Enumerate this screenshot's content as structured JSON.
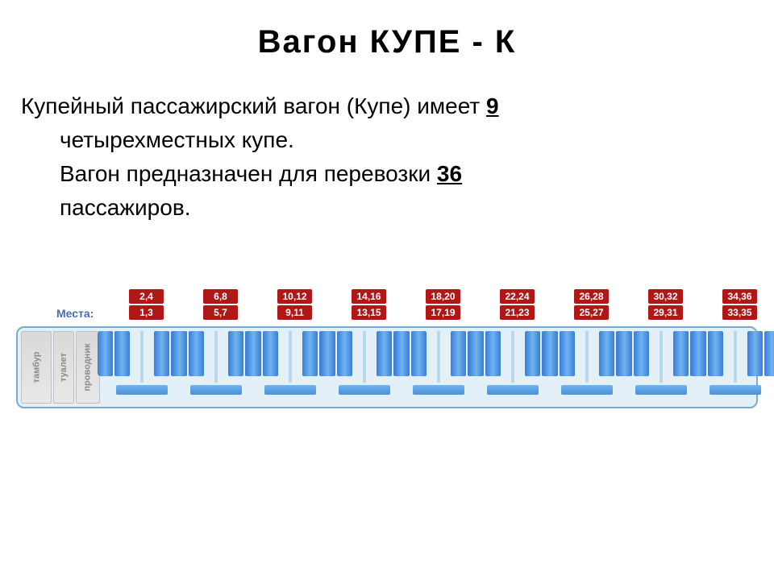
{
  "title": "Вагон  КУПЕ   -   К",
  "description": {
    "line1_pre": "Купейный пассажирский вагон (Купе) имеет",
    "compartment_count": "9",
    "line2": "четырехместных купе.",
    "line3_pre": "Вагон предназначен для перевозки",
    "passenger_count": "36",
    "line4": "пассажиров."
  },
  "seat_label_header": "Места:",
  "compartments": [
    {
      "upper": "2,4",
      "lower": "1,3"
    },
    {
      "upper": "6,8",
      "lower": "5,7"
    },
    {
      "upper": "10,12",
      "lower": "9,11"
    },
    {
      "upper": "14,16",
      "lower": "13,15"
    },
    {
      "upper": "18,20",
      "lower": "17,19"
    },
    {
      "upper": "22,24",
      "lower": "21,23"
    },
    {
      "upper": "26,28",
      "lower": "25,27"
    },
    {
      "upper": "30,32",
      "lower": "29,31"
    },
    {
      "upper": "34,36",
      "lower": "33,35"
    }
  ],
  "service": {
    "tambur": "тамбур",
    "toilet": "туалет",
    "conductor": "проводник"
  },
  "colors": {
    "title_text": "#000000",
    "body_text": "#000000",
    "mesta_label": "#4a6da8",
    "tag_bg": "#b01818",
    "tag_text": "#ffffff",
    "wagon_border": "#7baad0",
    "wagon_bg": "#e4f0f8",
    "seat_gradient_dark": "#3a7cd8",
    "seat_gradient_light": "#6fb4f0",
    "divider": "#b8d8ee",
    "service_bg": "#e0e0e0",
    "service_text": "#8a8a8a"
  }
}
